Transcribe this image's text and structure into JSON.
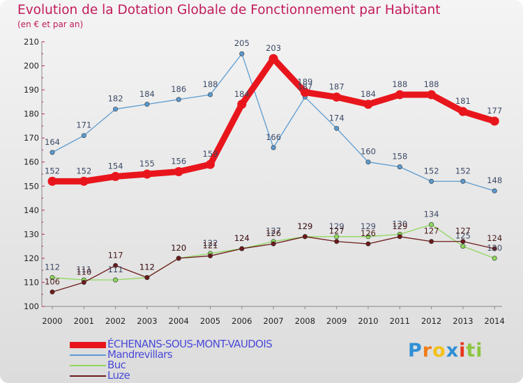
{
  "header": {
    "title": "Evolution de la Dotation Globale de Fonctionnement par Habitant",
    "subtitle": "(en € et par an)"
  },
  "logo": {
    "text": "Proxiti",
    "letters": [
      "P",
      "r",
      "o",
      "x",
      "i",
      "t",
      "i"
    ],
    "colors": [
      "#2f8fd6",
      "#ef7d1a",
      "#f2c21a",
      "#2f8fd6",
      "#e8361d",
      "#8cc63f",
      "#8cc63f"
    ]
  },
  "chart_data": {
    "type": "line",
    "x": [
      "2000",
      "2001",
      "2002",
      "2003",
      "2004",
      "2005",
      "2006",
      "2007",
      "2008",
      "2009",
      "2010",
      "2011",
      "2012",
      "2013",
      "2014"
    ],
    "ylim": [
      100,
      210
    ],
    "yticks": [
      100,
      110,
      120,
      130,
      140,
      150,
      160,
      170,
      180,
      190,
      200,
      210
    ],
    "grid": false,
    "legend_position": "bottom-left",
    "series": [
      {
        "name": "Mandrevillars",
        "color": "#5b9bd0",
        "values": [
          164,
          171,
          182,
          184,
          186,
          188,
          205,
          166,
          187,
          174,
          160,
          158,
          152,
          152,
          148
        ]
      },
      {
        "name": "Buc",
        "color": "#8ed85b",
        "values": [
          112,
          111,
          111,
          112,
          120,
          122,
          124,
          127,
          129,
          129,
          129,
          130,
          134,
          125,
          120
        ]
      },
      {
        "name": "Luze",
        "color": "#6b1a1a",
        "values": [
          106,
          110,
          117,
          112,
          120,
          121,
          124,
          126,
          129,
          127,
          126,
          129,
          127,
          127,
          124
        ]
      },
      {
        "name": "ÉCHENANS-SOUS-MONT-VAUDOIS",
        "color": "#e8161c",
        "values": [
          152,
          152,
          154,
          155,
          156,
          159,
          184,
          203,
          189,
          187,
          184,
          188,
          188,
          181,
          177
        ],
        "highlight": true
      }
    ]
  }
}
